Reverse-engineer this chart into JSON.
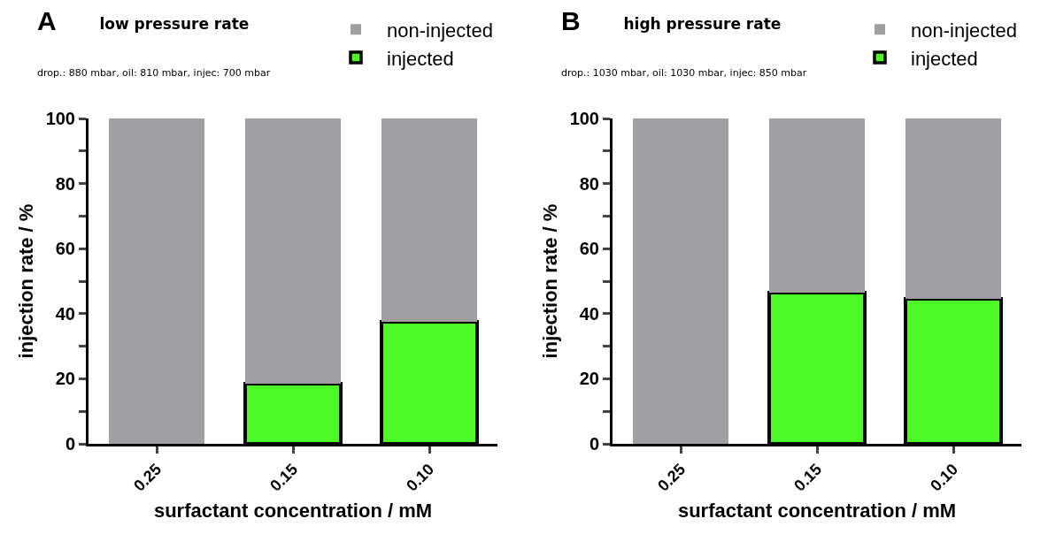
{
  "chart_data": [
    {
      "type": "bar",
      "stacked": true,
      "title": "low pressure rate",
      "subtitle": "drop.: 880 mbar, oil: 810 mbar, injec: 700 mbar",
      "annotations": [
        "A"
      ],
      "xlabel": "surfactant concentration / mM",
      "ylabel": "injection rate / %",
      "categories": [
        "0.25",
        "0.15",
        "0.10"
      ],
      "series": [
        {
          "name": "injected",
          "color": "#4cfa27",
          "values": [
            0,
            18.5,
            37.5
          ]
        },
        {
          "name": "non-injected",
          "color": "#a0a0a4",
          "values": [
            100,
            81.5,
            62.5
          ]
        }
      ],
      "ylim": [
        0,
        100
      ],
      "yticks": [
        0,
        {
          "value": 10,
          "label": null
        },
        20,
        {
          "value": 30,
          "label": null
        },
        40,
        {
          "value": 50,
          "label": null
        },
        60,
        {
          "value": 70,
          "label": null
        },
        80,
        {
          "value": 90,
          "label": null
        },
        100
      ],
      "grid": false,
      "legend": "top right"
    },
    {
      "type": "bar",
      "stacked": true,
      "title": "high pressure rate",
      "subtitle": "drop.: 1030 mbar, oil: 1030 mbar, injec: 850 mbar",
      "annotations": [
        "B"
      ],
      "xlabel": "surfactant concentration / mM",
      "ylabel": "injection rate / %",
      "categories": [
        "0.25",
        "0.15",
        "0.10"
      ],
      "series": [
        {
          "name": "injected",
          "color": "#4cfa27",
          "values": [
            0,
            46.5,
            44.5
          ]
        },
        {
          "name": "non-injected",
          "color": "#a0a0a4",
          "values": [
            100,
            53.5,
            55.5
          ]
        }
      ],
      "ylim": [
        0,
        100
      ],
      "yticks": [
        0,
        {
          "value": 10,
          "label": null
        },
        20,
        {
          "value": 30,
          "label": null
        },
        40,
        {
          "value": 50,
          "label": null
        },
        60,
        {
          "value": 70,
          "label": null
        },
        80,
        {
          "value": 90,
          "label": null
        },
        100
      ],
      "grid": false,
      "legend": "top right"
    }
  ]
}
